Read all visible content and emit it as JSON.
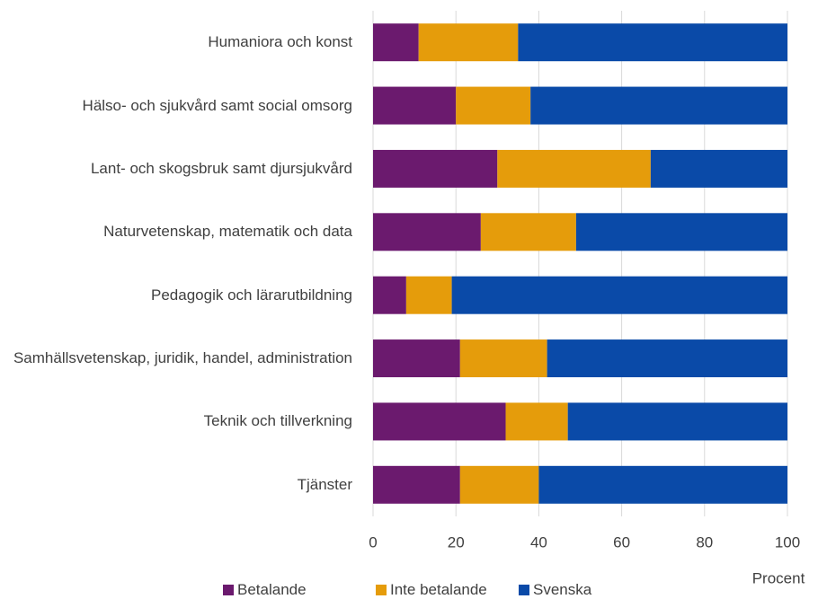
{
  "chart_data": {
    "type": "stacked_bar_horizontal",
    "categories": [
      "Humaniora och konst",
      "Hälso- och sjukvård samt social omsorg",
      "Lant- och skogsbruk samt djursjukvård",
      "Naturvetenskap, matematik och data",
      "Pedagogik och lärarutbildning",
      "Samhällsvetenskap, juridik, handel, administration",
      "Teknik och tillverkning",
      "Tjänster"
    ],
    "series": [
      {
        "name": "Betalande",
        "color": "#6b1a6e",
        "values": [
          11,
          20,
          30,
          26,
          8,
          21,
          32,
          21
        ]
      },
      {
        "name": "Inte betalande",
        "color": "#e59c0b",
        "values": [
          24,
          18,
          37,
          23,
          11,
          21,
          15,
          19
        ]
      },
      {
        "name": "Svenska",
        "color": "#0a4aa8",
        "values": [
          65,
          62,
          33,
          51,
          81,
          58,
          53,
          60
        ]
      }
    ],
    "x_label": "Procent",
    "xlim": [
      0,
      100
    ],
    "xticks": [
      0,
      20,
      40,
      60,
      80,
      100
    ],
    "grid": true,
    "legend": "bottom"
  }
}
